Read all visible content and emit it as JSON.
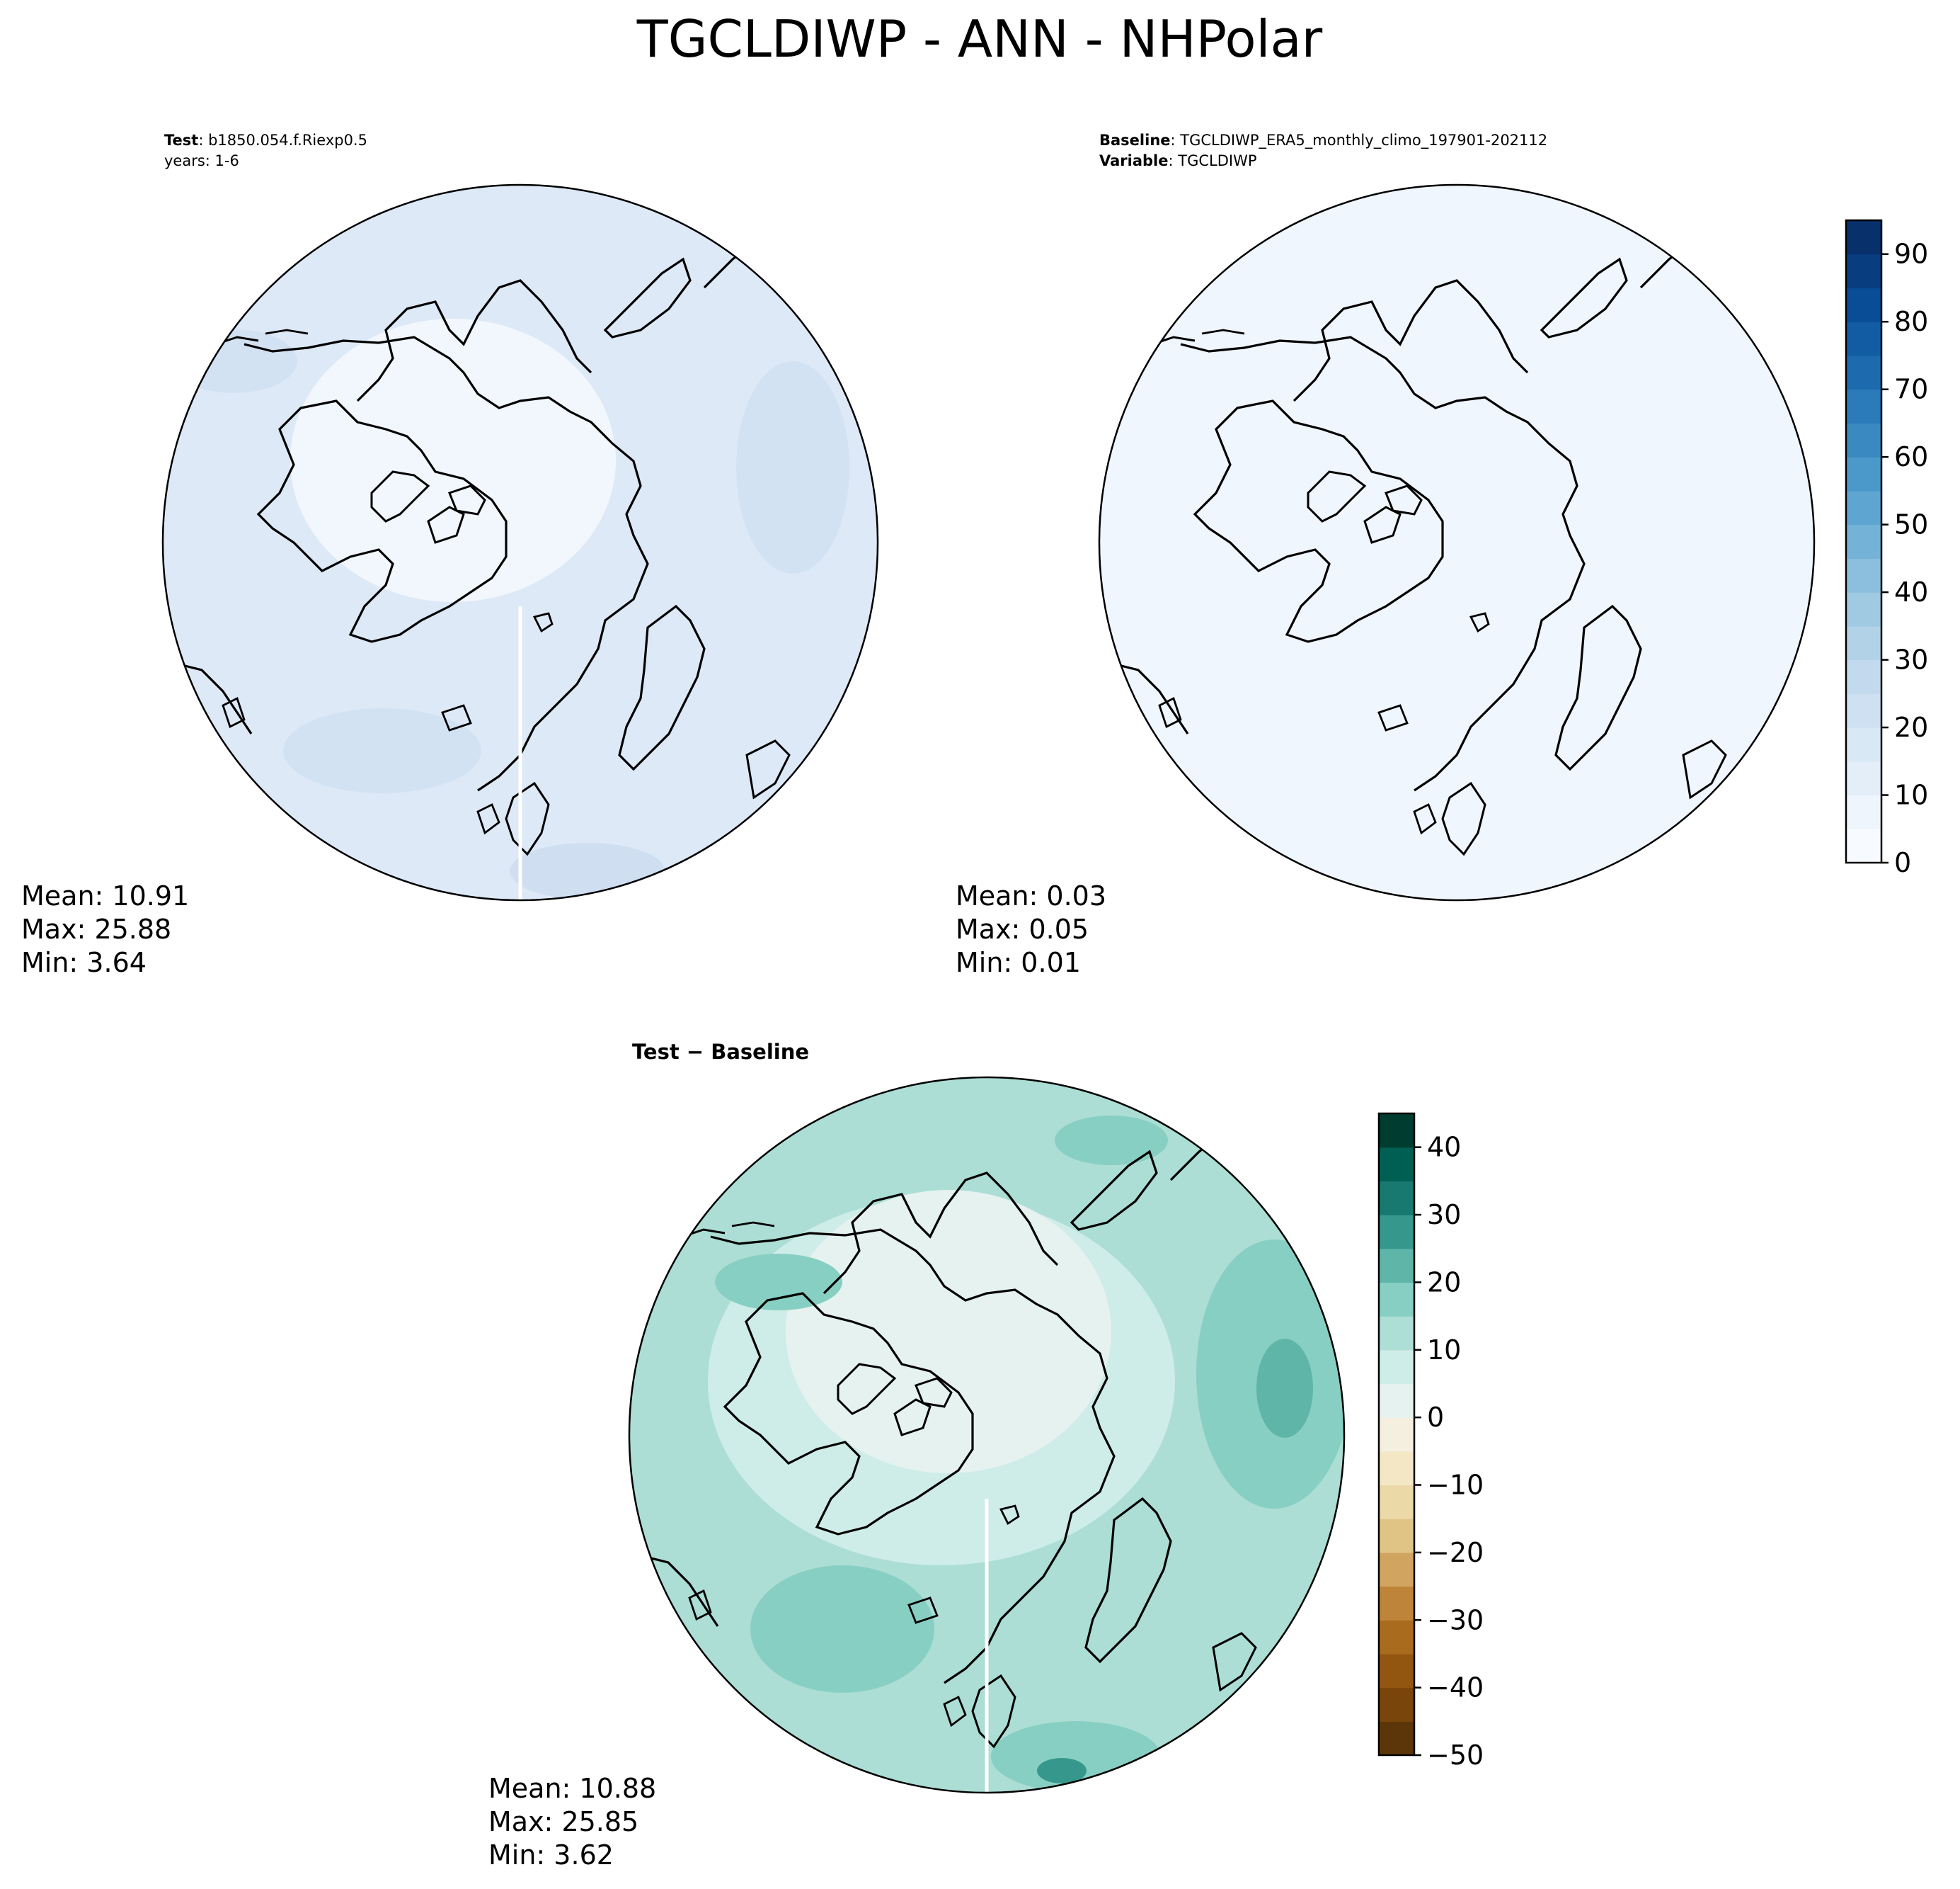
{
  "figure": {
    "title": "TGCLDIWP - ANN - NHPolar"
  },
  "panels": [
    {
      "id": "test",
      "header_line1_label": "Test",
      "header_line1_sep": ": ",
      "header_line1_value": "b1850.054.f.Riexp0.5",
      "header_line2_text": "years: 1-6",
      "stats": {
        "mean": "Mean: 10.91",
        "max": "Max: 25.88",
        "min": "Min:  3.64"
      },
      "fill_color": "#dde9f6"
    },
    {
      "id": "baseline",
      "header_line1_label": "Baseline",
      "header_line1_sep": ": ",
      "header_line1_value": "TGCLDIWP_ERA5_monthly_climo_197901-202112",
      "header_line2_label": "Variable",
      "header_line2_sep": ": ",
      "header_line2_value": "TGCLDIWP",
      "stats": {
        "mean": "Mean:  0.03",
        "max": "Max:  0.05",
        "min": "Min:  0.01"
      },
      "fill_color": "#f0f6fd"
    },
    {
      "id": "difference",
      "header_title": "Test − Baseline",
      "stats": {
        "mean": "Mean: 10.88",
        "max": "Max: 25.85",
        "min": "Min:  3.62"
      },
      "fill_color": "#cbeae6"
    }
  ],
  "colorbars": {
    "blues": {
      "ticks": [
        "0",
        "10",
        "20",
        "30",
        "40",
        "50",
        "60",
        "70",
        "80",
        "90"
      ],
      "range": [
        0,
        95
      ],
      "colors": [
        "#f7fbff",
        "#eef5fc",
        "#e3eef9",
        "#d9e8f5",
        "#cee0f2",
        "#c2d9ee",
        "#b2d2e8",
        "#a0c9e2",
        "#8bbfdd",
        "#74b2d7",
        "#5ea5d1",
        "#4b98ca",
        "#3a89c1",
        "#2b7ab9",
        "#1e6aaf",
        "#125ca4",
        "#084d96",
        "#083e80",
        "#08306b"
      ]
    },
    "brbg": {
      "ticks": [
        "40",
        "30",
        "20",
        "10",
        "0",
        "−10",
        "−20",
        "−30",
        "−40",
        "−50"
      ],
      "range": [
        -50,
        45
      ],
      "colors": [
        "#5c3608",
        "#7a450b",
        "#935611",
        "#a96c1e",
        "#be853a",
        "#d1a460",
        "#e0c485",
        "#ecd9a8",
        "#f4e7c5",
        "#f5efe0",
        "#e6f2f0",
        "#cfede8",
        "#aedfd7",
        "#88cfc3",
        "#5fb6a8",
        "#36978c",
        "#17796f",
        "#005f53",
        "#003c30"
      ]
    }
  }
}
